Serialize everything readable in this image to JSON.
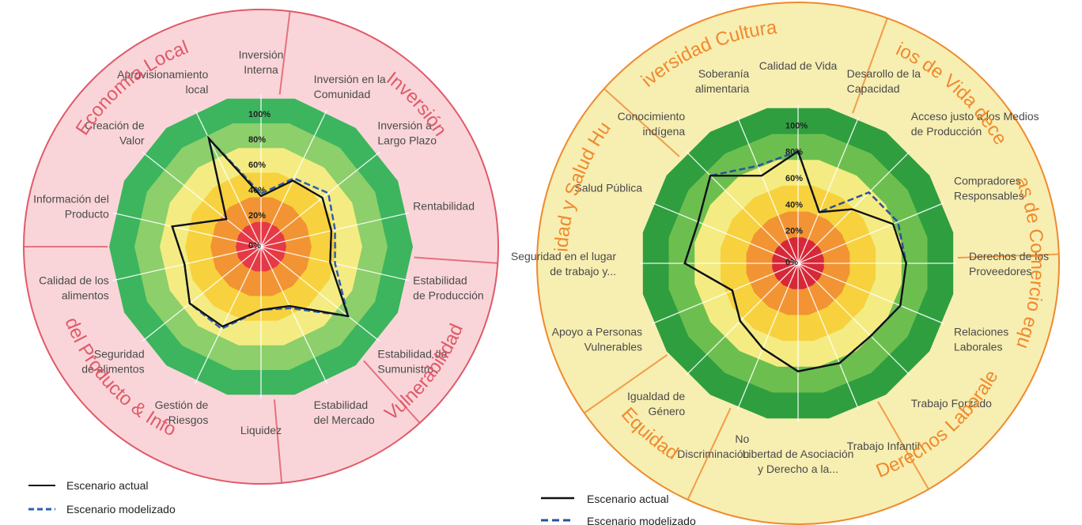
{
  "chart_data": [
    {
      "type": "radar",
      "ticks": [
        "0%",
        "20%",
        "40%",
        "60%",
        "80%",
        "100%"
      ],
      "range": [
        0,
        100
      ],
      "outer_fill": "#f9d5d9",
      "ring_border": "#e05a68",
      "band_colors": [
        "#e63946",
        "#f29433",
        "#f7d23e",
        "#f4ec82",
        "#8ccf6b",
        "#3cb55e"
      ],
      "categories_text": [
        "Inversión",
        "Vulnerabilidad",
        "Calidad del Producto & Información",
        "Economía Local"
      ],
      "axes": [
        "Inversión Interna",
        "Inversión en la Comunidad",
        "Inversión a Largo Plazo",
        "Rentabilidad",
        "Estabilidad de Producción",
        "Estabilidad de Sumunistro",
        "Estabilidad del Mercado",
        "Liquidez",
        "Gestión de Riesgos",
        "Seguridad de alimentos",
        "Calidad de los alimentos",
        "Información del Producto",
        "Creación de Valor",
        "Aprovisionamiento local"
      ],
      "series": [
        {
          "name": "Escenario actual",
          "color": "#111111",
          "dash": false,
          "values": [
            40,
            58,
            62,
            57,
            56,
            88,
            52,
            50,
            70,
            72,
            62,
            72,
            35,
            95
          ]
        },
        {
          "name": "Escenario modelizado",
          "color": "#2f5fb0",
          "dash": true,
          "values": [
            42,
            60,
            68,
            60,
            60,
            88,
            54,
            50,
            72,
            72,
            62,
            72,
            35,
            95
          ]
        }
      ]
    },
    {
      "type": "radar",
      "ticks": [
        "0%",
        "20%",
        "40%",
        "60%",
        "80%",
        "100%"
      ],
      "range": [
        0,
        100
      ],
      "outer_fill": "#f7eeb2",
      "ring_border": "#ef8a2c",
      "band_colors": [
        "#d62838",
        "#f29433",
        "#f7d23e",
        "#f4ec82",
        "#6cbf4f",
        "#2f9e3f"
      ],
      "categories_text": [
        "Medios de Vida decentes",
        "Prácticas de Comercio equitativas",
        "Derechos Laborales",
        "Equidad",
        "Seguridad y Salud Humana",
        "Diversidad Cultural"
      ],
      "axes": [
        "Calidad de Vida",
        "Desarollo de la Capacidad",
        "Acceso justo a los Medios de Producción",
        "Compradores Responsables",
        "Derechos de los Proveedores",
        "Relaciones Laborales",
        "Trabajo Forzado",
        "Trabajo Infantil",
        "Libertad de Asociación y Derecho a la...",
        "No Discriminación",
        "Igualdad de Género",
        "Apoyo a Personas Vulnerables",
        "Seguridad en el lugar de trabajo y...",
        "Salud Pública",
        "Conocimiento indígena",
        "Soberanía alimentaria"
      ],
      "series": [
        {
          "name": "Escenario actual",
          "color": "#111111",
          "dash": false,
          "values": [
            85,
            42,
            58,
            78,
            82,
            84,
            78,
            82,
            82,
            70,
            62,
            54,
            86,
            82,
            94,
            72
          ]
        },
        {
          "name": "Escenario modelizado",
          "color": "#2f4f9e",
          "dash": true,
          "values": [
            85,
            42,
            76,
            82,
            82,
            84,
            78,
            82,
            82,
            70,
            62,
            54,
            86,
            82,
            94,
            80
          ]
        }
      ]
    }
  ],
  "legend_left": {
    "actual": "Escenario actual",
    "modelado": "Escenario modelizado"
  },
  "legend_right": {
    "actual": "Escenario actual",
    "modelado": "Escenario modelizado"
  }
}
